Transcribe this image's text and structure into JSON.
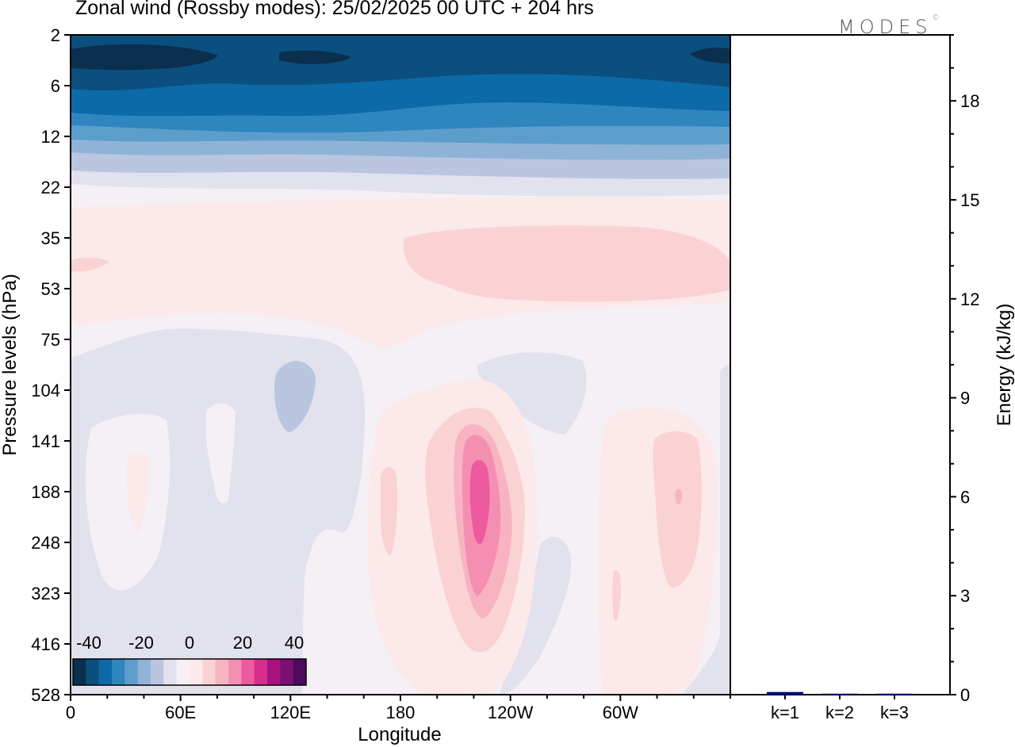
{
  "header": {
    "title": "Zonal wind (Rossby modes):  25/02/2025  00 UTC  + 204 hrs",
    "logo_text": "MODES",
    "logo_mark": "©"
  },
  "chart_data": [
    {
      "type": "heatmap",
      "title": "Zonal wind (Rossby modes):  25/02/2025  00 UTC  + 204 hrs",
      "xlabel": "Longitude",
      "ylabel": "Pressure levels (hPa)",
      "x_ticks": [
        "0",
        "60E",
        "120E",
        "180",
        "120W",
        "60W"
      ],
      "y_ticks": [
        "2",
        "6",
        "12",
        "22",
        "35",
        "53",
        "75",
        "104",
        "141",
        "188",
        "248",
        "323",
        "416",
        "528"
      ],
      "y_scale": "log-pressure, inverted",
      "colorbar": {
        "labels": [
          "-40",
          "-20",
          "0",
          "20",
          "40"
        ],
        "colors": [
          "#0b2f4f",
          "#0b4f7f",
          "#0d6aa8",
          "#2f86bf",
          "#5c9ecb",
          "#8fb3d7",
          "#bac6e0",
          "#e2e1ee",
          "#f4f0f6",
          "#fce9ea",
          "#fad2d4",
          "#f8b3c2",
          "#f58fb2",
          "#ee5a9e",
          "#d42f8c",
          "#a8127d",
          "#7d0f72",
          "#4f0a5d"
        ],
        "location": "lower-left inset"
      },
      "features": {
        "stratospheric_easterly_max": "about -40 near 2–4 hPa",
        "westerly_max": "about +20 near 188 hPa, 150W"
      }
    },
    {
      "type": "bar",
      "categories": [
        "k=1",
        "k=2",
        "k=3"
      ],
      "values": [
        0.08,
        0.03,
        0.03
      ],
      "ylabel": "Energy (kJ/kg)",
      "ylim": [
        0,
        20
      ],
      "y_ticks": [
        "0",
        "3",
        "6",
        "9",
        "12",
        "15",
        "18"
      ],
      "bar_color": "#000080"
    }
  ]
}
